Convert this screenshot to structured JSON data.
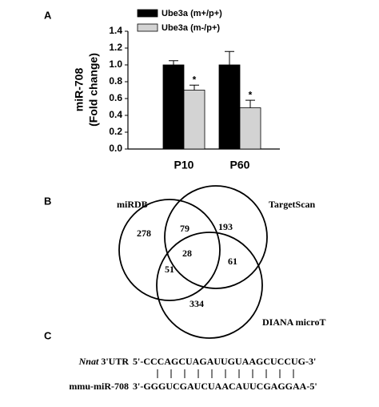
{
  "panel_labels": [
    "A",
    "B",
    "C"
  ],
  "chart_data": {
    "type": "bar",
    "ylabel": [
      "miR-708",
      "(Fold change)"
    ],
    "categories": [
      "P10",
      "P60"
    ],
    "series": [
      {
        "name": "Ube3a (m+/p+)",
        "color": "#000000",
        "values": [
          1.0,
          1.0
        ],
        "errors": [
          0.05,
          0.16
        ]
      },
      {
        "name": "Ube3a (m-/p+)",
        "color": "#d3d3d3",
        "values": [
          0.7,
          0.49
        ],
        "errors": [
          0.06,
          0.09
        ],
        "value_labels": [
          "*",
          "*"
        ]
      }
    ],
    "ylim": [
      0,
      1.4
    ],
    "yticks": [
      {
        "value": 0,
        "label": "0.0"
      },
      0.2,
      0.4,
      0.6,
      0.8,
      {
        "value": 1,
        "label": "1.0"
      },
      1.2,
      1.4
    ],
    "legend": "top"
  },
  "venn": {
    "sets": [
      "miRDB",
      "TargetScan",
      "DIANA microT"
    ],
    "regions": {
      "mirdb_only": "278",
      "targetscan_only": "193",
      "diana_only": "334",
      "mirdb_targetscan": "79",
      "mirdb_diana": "51",
      "targetscan_diana": "61",
      "all": "28"
    }
  },
  "alignment": {
    "top_gene": "Nnat",
    "top_label": "3'UTR",
    "top_seq": "5'-CCCAGCUAGAUUGUAAGCUCCUG-3'",
    "bottom_label": "mmu-miR-708",
    "bottom_seq": "3'-GGGUCGAUCUAACAUUCGAGGAA-5'"
  }
}
